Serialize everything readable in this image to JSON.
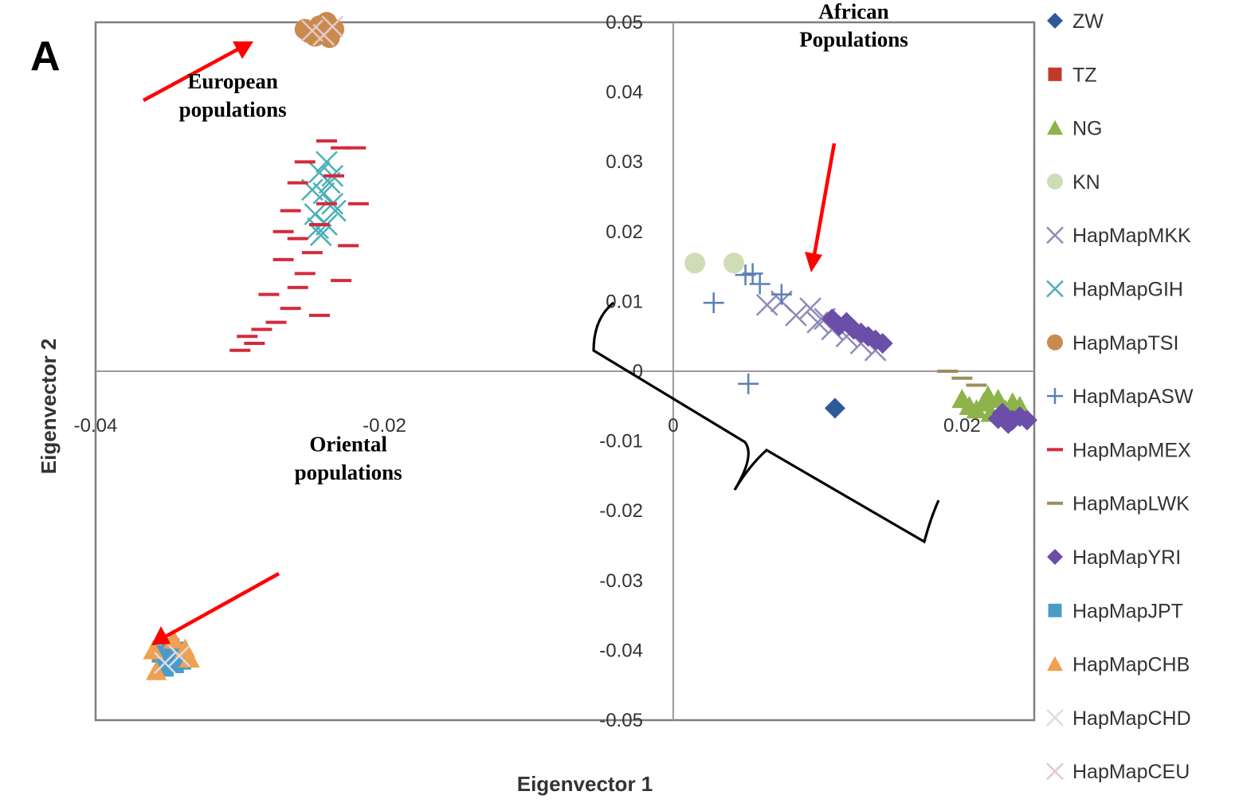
{
  "panel_label": "A",
  "chart_data": {
    "type": "scatter",
    "xlabel": "Eigenvector 1",
    "ylabel": "Eigenvector 2",
    "xlim": [
      -0.04,
      0.025
    ],
    "ylim": [
      -0.05,
      0.05
    ],
    "x_ticks": [
      {
        "value": -0.04,
        "label": "-0.04"
      },
      {
        "value": -0.02,
        "label": "-0.02"
      },
      {
        "value": 0,
        "label": "0"
      },
      {
        "value": 0.02,
        "label": "0.02"
      }
    ],
    "y_ticks": [
      {
        "value": 0.05,
        "label": "0.05"
      },
      {
        "value": 0.04,
        "label": "0.04"
      },
      {
        "value": 0.03,
        "label": "0.03"
      },
      {
        "value": 0.02,
        "label": "0.02"
      },
      {
        "value": 0.01,
        "label": "0.01"
      },
      {
        "value": 0,
        "label": "0"
      },
      {
        "value": -0.01,
        "label": "-0.01"
      },
      {
        "value": -0.02,
        "label": "-0.02"
      },
      {
        "value": -0.03,
        "label": "-0.03"
      },
      {
        "value": -0.04,
        "label": "-0.04"
      },
      {
        "value": -0.05,
        "label": "-0.05"
      }
    ],
    "grid": false,
    "legend_position": "right",
    "annotations": [
      {
        "text": "European",
        "x": -0.0305,
        "y": 0.0405
      },
      {
        "text": "populations",
        "x": -0.0305,
        "y": 0.0365
      },
      {
        "text": "African",
        "x": 0.0125,
        "y": 0.0505
      },
      {
        "text": "Populations",
        "x": 0.0125,
        "y": 0.0465
      },
      {
        "text": "Oriental",
        "x": -0.0225,
        "y": -0.0115
      },
      {
        "text": "populations",
        "x": -0.0225,
        "y": -0.0155
      }
    ],
    "arrow_color": "#ff0000",
    "series": [
      {
        "name": "ZW",
        "marker": "diamond",
        "color": "#2e5a9c",
        "points": [
          [
            0.0112,
            -0.0053
          ]
        ]
      },
      {
        "name": "TZ",
        "marker": "square",
        "color": "#c0392b",
        "points": []
      },
      {
        "name": "NG",
        "marker": "triangle",
        "color": "#8db34a",
        "points": [
          [
            0.0205,
            -0.005
          ],
          [
            0.0215,
            -0.0045
          ],
          [
            0.0225,
            -0.004
          ],
          [
            0.0235,
            -0.0045
          ],
          [
            0.021,
            -0.0055
          ],
          [
            0.022,
            -0.006
          ],
          [
            0.023,
            -0.0055
          ],
          [
            0.02,
            -0.004
          ],
          [
            0.024,
            -0.005
          ],
          [
            0.0218,
            -0.0035
          ]
        ]
      },
      {
        "name": "KN",
        "marker": "circle",
        "color": "#cfdcb5",
        "points": [
          [
            0.0015,
            0.0155
          ],
          [
            0.0042,
            0.0155
          ]
        ]
      },
      {
        "name": "HapMapMKK",
        "marker": "x",
        "color": "#8f8bb8",
        "points": [
          [
            0.0065,
            0.0095
          ],
          [
            0.0085,
            0.008
          ],
          [
            0.01,
            0.007
          ],
          [
            0.011,
            0.006
          ],
          [
            0.0095,
            0.009
          ],
          [
            0.012,
            0.005
          ],
          [
            0.013,
            0.004
          ],
          [
            0.0075,
            0.01
          ],
          [
            0.014,
            0.003
          ],
          [
            0.0105,
            0.0075
          ]
        ]
      },
      {
        "name": "HapMapGIH",
        "marker": "x",
        "color": "#4ab0b8",
        "points": [
          [
            -0.024,
            0.03
          ],
          [
            -0.0245,
            0.0285
          ],
          [
            -0.0238,
            0.027
          ],
          [
            -0.0242,
            0.0255
          ],
          [
            -0.0236,
            0.024
          ],
          [
            -0.0248,
            0.0225
          ],
          [
            -0.024,
            0.021
          ],
          [
            -0.0244,
            0.0195
          ],
          [
            -0.0236,
            0.028
          ],
          [
            -0.025,
            0.026
          ],
          [
            -0.0234,
            0.023
          ],
          [
            -0.0246,
            0.0205
          ]
        ]
      },
      {
        "name": "HapMapTSI",
        "marker": "circle",
        "color": "#c98a4e",
        "points": [
          [
            -0.0255,
            0.049
          ],
          [
            -0.0245,
            0.0495
          ],
          [
            -0.0235,
            0.049
          ],
          [
            -0.0248,
            0.048
          ],
          [
            -0.024,
            0.05
          ],
          [
            -0.0252,
            0.0485
          ],
          [
            -0.0238,
            0.0478
          ]
        ]
      },
      {
        "name": "HapMapASW",
        "marker": "plus",
        "color": "#5b7fb5",
        "points": [
          [
            0.0028,
            0.0098
          ],
          [
            0.0052,
            -0.0018
          ],
          [
            0.005,
            0.0138
          ],
          [
            0.006,
            0.0125
          ],
          [
            0.0055,
            0.014
          ],
          [
            0.0075,
            0.011
          ]
        ]
      },
      {
        "name": "HapMapMEX",
        "marker": "dash",
        "color": "#d42a3c",
        "points": [
          [
            -0.03,
            0.003
          ],
          [
            -0.0295,
            0.005
          ],
          [
            -0.0285,
            0.006
          ],
          [
            -0.029,
            0.004
          ],
          [
            -0.0275,
            0.007
          ],
          [
            -0.0265,
            0.009
          ],
          [
            -0.028,
            0.011
          ],
          [
            -0.026,
            0.012
          ],
          [
            -0.0255,
            0.014
          ],
          [
            -0.027,
            0.016
          ],
          [
            -0.025,
            0.017
          ],
          [
            -0.026,
            0.019
          ],
          [
            -0.0245,
            0.021
          ],
          [
            -0.0265,
            0.023
          ],
          [
            -0.024,
            0.024
          ],
          [
            -0.026,
            0.027
          ],
          [
            -0.0235,
            0.028
          ],
          [
            -0.0255,
            0.03
          ],
          [
            -0.023,
            0.032
          ],
          [
            -0.024,
            0.033
          ],
          [
            -0.022,
            0.032
          ],
          [
            -0.0225,
            0.018
          ],
          [
            -0.023,
            0.013
          ],
          [
            -0.0245,
            0.008
          ],
          [
            -0.027,
            0.02
          ],
          [
            -0.0218,
            0.024
          ]
        ]
      },
      {
        "name": "HapMapLWK",
        "marker": "dash",
        "color": "#9a8f5a",
        "points": [
          [
            0.021,
            -0.002
          ],
          [
            0.02,
            -0.001
          ],
          [
            0.019,
            0.0
          ]
        ]
      },
      {
        "name": "HapMapYRI",
        "marker": "diamond",
        "color": "#6b4ea8",
        "points": [
          [
            0.012,
            0.007
          ],
          [
            0.0125,
            0.006
          ],
          [
            0.0115,
            0.0065
          ],
          [
            0.013,
            0.0055
          ],
          [
            0.011,
            0.0075
          ],
          [
            0.0135,
            0.005
          ],
          [
            0.014,
            0.0045
          ],
          [
            0.0145,
            0.004
          ],
          [
            0.0228,
            -0.006
          ],
          [
            0.0235,
            -0.007
          ],
          [
            0.024,
            -0.0065
          ],
          [
            0.0232,
            -0.0075
          ],
          [
            0.0245,
            -0.007
          ],
          [
            0.0225,
            -0.0068
          ]
        ]
      },
      {
        "name": "HapMapJPT",
        "marker": "square",
        "color": "#4a9cc8",
        "points": [
          [
            -0.035,
            -0.041
          ],
          [
            -0.0345,
            -0.042
          ],
          [
            -0.0355,
            -0.0405
          ],
          [
            -0.0348,
            -0.0395
          ],
          [
            -0.034,
            -0.0415
          ],
          [
            -0.0352,
            -0.0425
          ],
          [
            -0.0343,
            -0.04
          ]
        ]
      },
      {
        "name": "HapMapCHB",
        "marker": "triangle",
        "color": "#f0a050",
        "points": [
          [
            -0.0338,
            -0.0398
          ],
          [
            -0.0358,
            -0.043
          ],
          [
            -0.0335,
            -0.0412
          ],
          [
            -0.036,
            -0.04
          ],
          [
            -0.0346,
            -0.0385
          ]
        ]
      },
      {
        "name": "HapMapCHD",
        "marker": "x",
        "color": "#d8dde8",
        "points": [
          [
            -0.0342,
            -0.0408
          ],
          [
            -0.0352,
            -0.0418
          ]
        ]
      },
      {
        "name": "HapMapCEU",
        "marker": "x",
        "color": "#e6c8c8",
        "points": [
          [
            -0.025,
            0.0488
          ],
          [
            -0.0242,
            0.0482
          ],
          [
            -0.0236,
            0.0494
          ]
        ]
      }
    ]
  }
}
